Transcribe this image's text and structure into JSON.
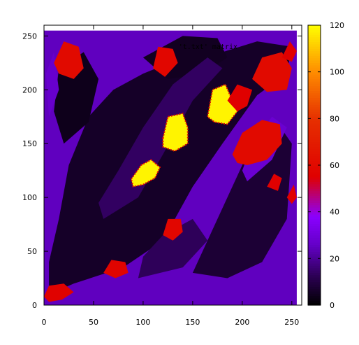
{
  "chart_data": {
    "type": "heatmap",
    "title": "",
    "xlabel": "",
    "ylabel": "",
    "xlim": [
      0,
      260
    ],
    "ylim": [
      0,
      260
    ],
    "data_extent": [
      0,
      255
    ],
    "x_ticks": [
      0,
      50,
      100,
      150,
      200,
      250
    ],
    "y_ticks": [
      0,
      50,
      100,
      150,
      200,
      250
    ],
    "x_tick_labels": [
      "0",
      "50",
      "100",
      "150",
      "200",
      "250"
    ],
    "y_tick_labels": [
      "0",
      "50",
      "100",
      "150",
      "200",
      "250"
    ],
    "legend": {
      "entries": [
        "'t.txt' matrix"
      ],
      "placement": "top-right"
    },
    "colorbar": {
      "range": [
        0,
        120
      ],
      "ticks": [
        0,
        20,
        40,
        60,
        80,
        100,
        120
      ],
      "tick_labels": [
        "0",
        "20",
        "40",
        "60",
        "80",
        "100",
        "120"
      ],
      "palette": "black-purple-red-yellow",
      "stops": [
        {
          "value": 0,
          "color": "#000000"
        },
        {
          "value": 12,
          "color": "#2a0050"
        },
        {
          "value": 26,
          "color": "#6400c8"
        },
        {
          "value": 38,
          "color": "#8a00ff"
        },
        {
          "value": 55,
          "color": "#e00000"
        },
        {
          "value": 80,
          "color": "#e63000"
        },
        {
          "value": 100,
          "color": "#ff8c00"
        },
        {
          "value": 120,
          "color": "#ffff00"
        }
      ]
    },
    "background_value": 25,
    "regions": [
      {
        "label": "dark-main-band",
        "value": 6,
        "polygon": [
          [
            5,
            10
          ],
          [
            30,
            20
          ],
          [
            80,
            35
          ],
          [
            120,
            60
          ],
          [
            150,
            110
          ],
          [
            180,
            150
          ],
          [
            215,
            195
          ],
          [
            245,
            215
          ],
          [
            250,
            240
          ],
          [
            215,
            245
          ],
          [
            180,
            235
          ],
          [
            140,
            230
          ],
          [
            100,
            215
          ],
          [
            70,
            200
          ],
          [
            45,
            175
          ],
          [
            25,
            130
          ],
          [
            15,
            80
          ],
          [
            5,
            40
          ]
        ]
      },
      {
        "label": "dark-right-lower",
        "value": 8,
        "polygon": [
          [
            150,
            30
          ],
          [
            185,
            25
          ],
          [
            220,
            40
          ],
          [
            245,
            80
          ],
          [
            250,
            150
          ],
          [
            235,
            170
          ],
          [
            210,
            150
          ],
          [
            190,
            110
          ],
          [
            170,
            70
          ]
        ]
      },
      {
        "label": "dark-top-left",
        "value": 4,
        "polygon": [
          [
            20,
            150
          ],
          [
            45,
            170
          ],
          [
            55,
            210
          ],
          [
            40,
            235
          ],
          [
            15,
            220
          ],
          [
            10,
            180
          ]
        ]
      },
      {
        "label": "dark-upper-center",
        "value": 5,
        "polygon": [
          [
            100,
            230
          ],
          [
            140,
            250
          ],
          [
            175,
            248
          ],
          [
            185,
            230
          ],
          [
            160,
            215
          ],
          [
            125,
            210
          ]
        ]
      },
      {
        "label": "mid-inner-band",
        "value": 14,
        "polygon": [
          [
            60,
            80
          ],
          [
            95,
            100
          ],
          [
            120,
            140
          ],
          [
            150,
            190
          ],
          [
            180,
            220
          ],
          [
            165,
            230
          ],
          [
            130,
            205
          ],
          [
            100,
            165
          ],
          [
            75,
            125
          ],
          [
            55,
            95
          ]
        ]
      },
      {
        "label": "mid-lower",
        "value": 13,
        "polygon": [
          [
            95,
            25
          ],
          [
            140,
            35
          ],
          [
            165,
            60
          ],
          [
            150,
            80
          ],
          [
            120,
            65
          ],
          [
            100,
            45
          ]
        ]
      },
      {
        "label": "purple-right-channel",
        "value": 28,
        "polygon": [
          [
            205,
            115
          ],
          [
            230,
            135
          ],
          [
            245,
            165
          ],
          [
            230,
            175
          ],
          [
            210,
            150
          ],
          [
            200,
            125
          ]
        ]
      },
      {
        "label": "purple-left-wedge",
        "value": 27,
        "polygon": [
          [
            5,
            175
          ],
          [
            15,
            200
          ],
          [
            10,
            235
          ],
          [
            2,
            215
          ]
        ]
      },
      {
        "label": "hot-100-130",
        "value": 118,
        "polygon": [
          [
            88,
            117
          ],
          [
            98,
            130
          ],
          [
            108,
            135
          ],
          [
            117,
            128
          ],
          [
            112,
            118
          ],
          [
            100,
            112
          ],
          [
            90,
            110
          ]
        ]
      },
      {
        "label": "hot-130-163",
        "value": 118,
        "polygon": [
          [
            120,
            155
          ],
          [
            125,
            175
          ],
          [
            140,
            178
          ],
          [
            145,
            165
          ],
          [
            145,
            150
          ],
          [
            132,
            143
          ],
          [
            120,
            147
          ]
        ]
      },
      {
        "label": "hot-170-190",
        "value": 118,
        "polygon": [
          [
            165,
            175
          ],
          [
            170,
            200
          ],
          [
            183,
            205
          ],
          [
            190,
            190
          ],
          [
            195,
            180
          ],
          [
            185,
            168
          ],
          [
            172,
            170
          ]
        ]
      },
      {
        "label": "red-right-blob",
        "value": 60,
        "polygon": [
          [
            190,
            140
          ],
          [
            200,
            160
          ],
          [
            220,
            172
          ],
          [
            238,
            168
          ],
          [
            240,
            150
          ],
          [
            225,
            135
          ],
          [
            205,
            130
          ],
          [
            195,
            132
          ]
        ]
      },
      {
        "label": "red-top-left",
        "value": 60,
        "polygon": [
          [
            10,
            225
          ],
          [
            20,
            245
          ],
          [
            35,
            240
          ],
          [
            40,
            220
          ],
          [
            30,
            210
          ],
          [
            15,
            215
          ]
        ]
      },
      {
        "label": "red-top-mid",
        "value": 58,
        "polygon": [
          [
            110,
            220
          ],
          [
            115,
            240
          ],
          [
            130,
            238
          ],
          [
            135,
            225
          ],
          [
            122,
            212
          ]
        ]
      },
      {
        "label": "red-right-top",
        "value": 60,
        "polygon": [
          [
            210,
            210
          ],
          [
            220,
            230
          ],
          [
            240,
            235
          ],
          [
            250,
            220
          ],
          [
            245,
            200
          ],
          [
            225,
            198
          ]
        ]
      },
      {
        "label": "red-lower-mid",
        "value": 58,
        "polygon": [
          [
            120,
            65
          ],
          [
            125,
            80
          ],
          [
            138,
            80
          ],
          [
            140,
            68
          ],
          [
            130,
            60
          ]
        ]
      },
      {
        "label": "red-lower-left",
        "value": 57,
        "polygon": [
          [
            60,
            30
          ],
          [
            68,
            42
          ],
          [
            82,
            40
          ],
          [
            85,
            30
          ],
          [
            72,
            25
          ]
        ]
      },
      {
        "label": "red-bottom-left",
        "value": 56,
        "polygon": [
          [
            0,
            8
          ],
          [
            5,
            18
          ],
          [
            20,
            20
          ],
          [
            30,
            12
          ],
          [
            18,
            5
          ],
          [
            5,
            3
          ]
        ]
      },
      {
        "label": "red-center-right",
        "value": 55,
        "polygon": [
          [
            185,
            190
          ],
          [
            195,
            205
          ],
          [
            210,
            200
          ],
          [
            205,
            185
          ],
          [
            195,
            180
          ]
        ]
      },
      {
        "label": "red-small-a",
        "value": 55,
        "polygon": [
          [
            225,
            110
          ],
          [
            232,
            122
          ],
          [
            240,
            118
          ],
          [
            236,
            106
          ]
        ]
      },
      {
        "label": "red-small-b",
        "value": 55,
        "polygon": [
          [
            245,
            100
          ],
          [
            252,
            112
          ],
          [
            255,
            100
          ],
          [
            250,
            94
          ]
        ]
      },
      {
        "label": "red-small-c",
        "value": 55,
        "polygon": [
          [
            240,
            230
          ],
          [
            248,
            245
          ],
          [
            255,
            236
          ],
          [
            250,
            226
          ]
        ]
      }
    ]
  }
}
